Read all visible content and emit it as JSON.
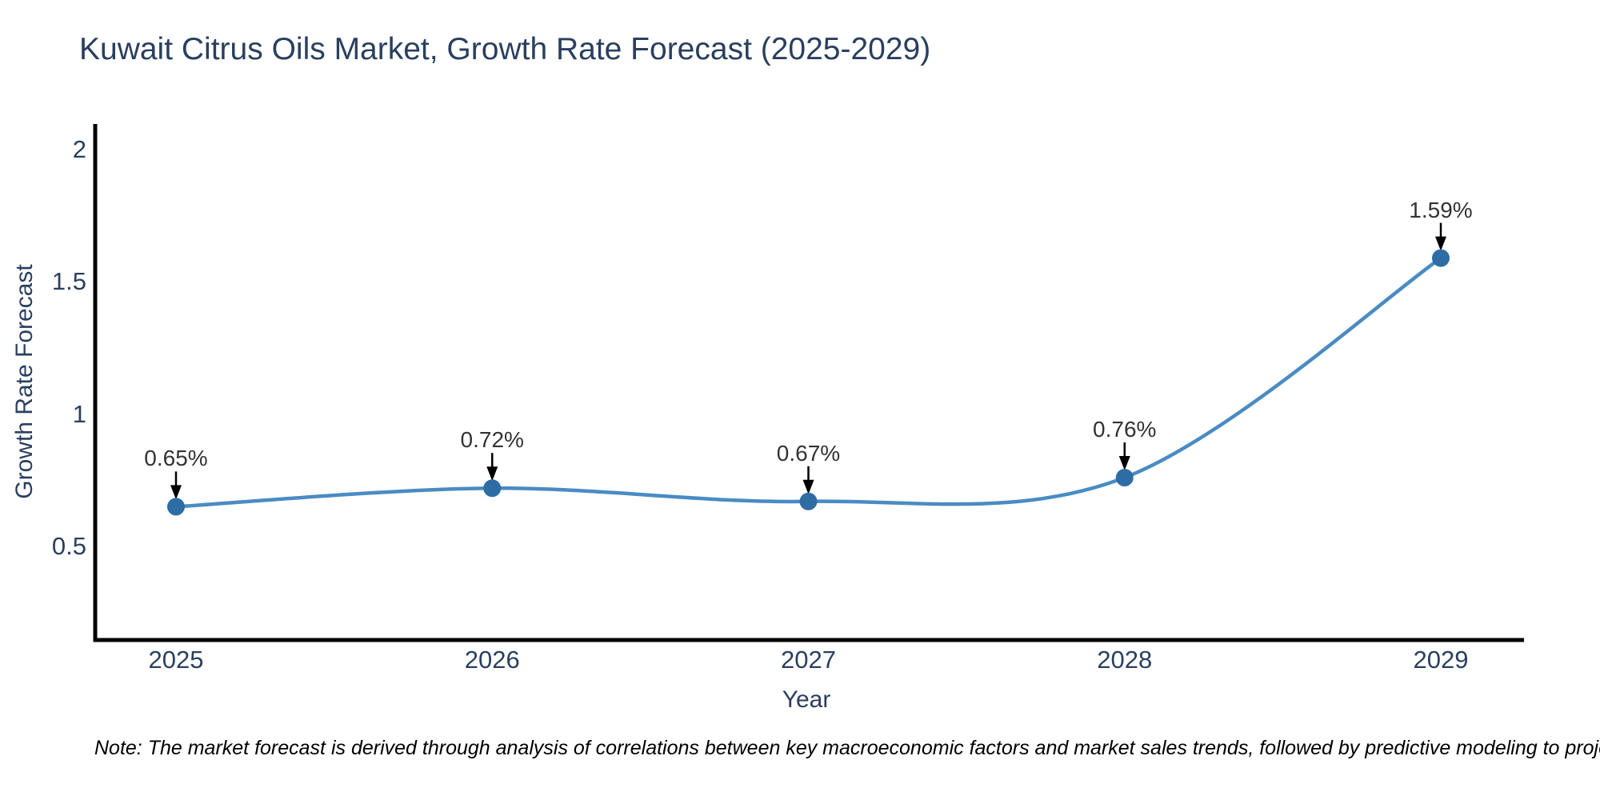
{
  "chart_data": {
    "type": "line",
    "title": "Kuwait Citrus Oils Market, Growth Rate Forecast (2025-2029)",
    "xlabel": "Year",
    "ylabel": "Growth Rate Forecast",
    "categories": [
      "2025",
      "2026",
      "2027",
      "2028",
      "2029"
    ],
    "values": [
      0.65,
      0.72,
      0.67,
      0.76,
      1.59
    ],
    "point_labels": [
      "0.65%",
      "0.72%",
      "0.67%",
      "0.76%",
      "1.59%"
    ],
    "series_name": "Growth Rate Forecast",
    "yticks": [
      2,
      1.5,
      1,
      0.5
    ],
    "ytick_labels": [
      "2",
      "1.5",
      "1",
      "0.5"
    ],
    "ylim": [
      0.15,
      2.1
    ],
    "line_shape": "spline",
    "grid": false,
    "legend_position": "none",
    "line_color": "#4a8bc3",
    "marker_color": "#2e6da4",
    "axis_color": "#000000",
    "arrow_color": "#000000",
    "title_color": "#2a3f5f",
    "background_color": "#ffffff",
    "note": "Note: The market forecast is derived through analysis of correlations between key macroeconomic factors and market sales trends, followed by predictive modeling to project future sales"
  }
}
